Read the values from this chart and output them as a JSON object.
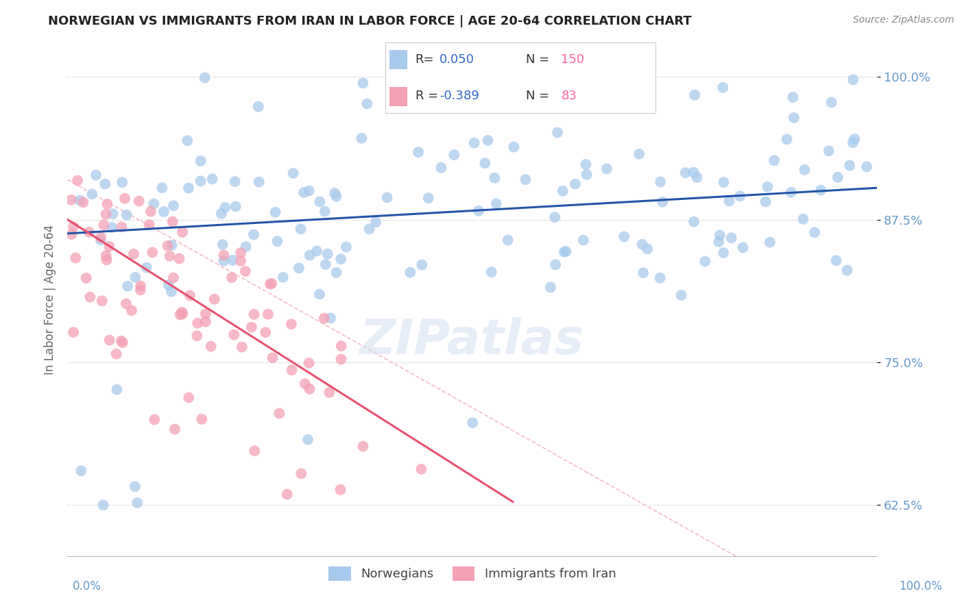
{
  "title": "NORWEGIAN VS IMMIGRANTS FROM IRAN IN LABOR FORCE | AGE 20-64 CORRELATION CHART",
  "source": "Source: ZipAtlas.com",
  "ylabel": "In Labor Force | Age 20-64",
  "yticks": [
    62.5,
    75.0,
    87.5,
    100.0
  ],
  "ytick_labels": [
    "62.5%",
    "75.0%",
    "87.5%",
    "100.0%"
  ],
  "xlim": [
    0.0,
    100.0
  ],
  "ylim": [
    58.0,
    103.0
  ],
  "watermark": "ZIPatlas",
  "blue_color": "#A8CAEC",
  "pink_color": "#F4A0B5",
  "blue_line_color": "#2255AA",
  "pink_line_color": "#E85070",
  "pink_dash_color": "#F0AABB",
  "title_color": "#222222",
  "axis_label_color": "#666666",
  "tick_label_color": "#6699CC",
  "legend_r_color": "#3366CC",
  "legend_n_color": "#FF6699",
  "background_color": "#FFFFFF",
  "grid_color": "#DDDDDD",
  "legend_box_color": "#F5F5FF"
}
